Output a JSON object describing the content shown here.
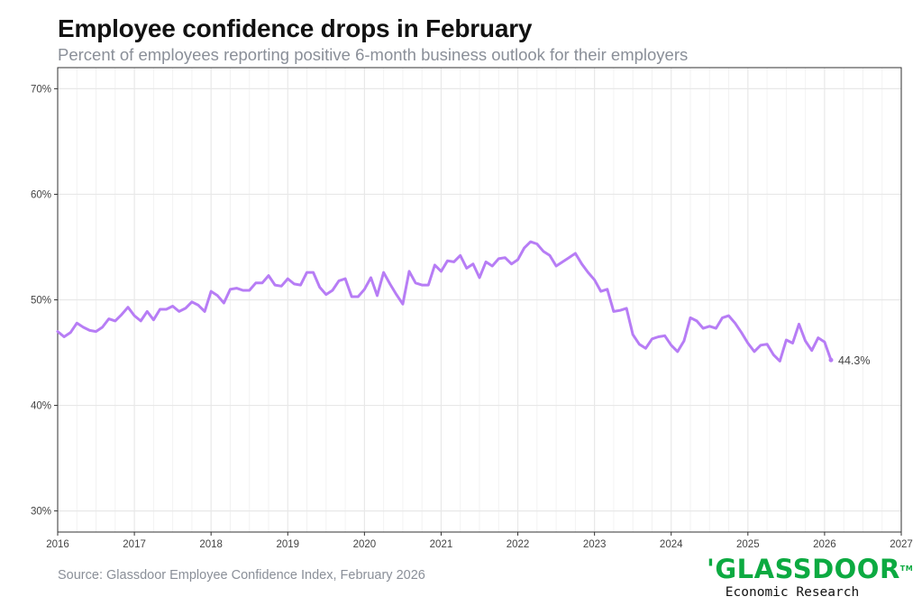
{
  "header": {
    "title": "Employee confidence drops in February",
    "subtitle": "Percent of employees reporting positive 6-month business outlook for their employers"
  },
  "footer": {
    "source": "Source: Glassdoor Employee Confidence Index, February 2026",
    "logo_text": "'GLASSDOOR",
    "logo_tm": "TM",
    "logo_subtext": "Economic Research"
  },
  "colors": {
    "line": "#b77df5",
    "grid": "#e8e8e8",
    "axis": "#333333"
  },
  "chart_data": {
    "type": "line",
    "title": "Employee confidence drops in February",
    "xlabel": "",
    "ylabel": "",
    "xlim": [
      2016,
      2027
    ],
    "ylim": [
      28,
      72
    ],
    "yticks": [
      30,
      40,
      50,
      60,
      70
    ],
    "ytick_labels": [
      "30%",
      "40%",
      "50%",
      "60%",
      "70%"
    ],
    "xticks": [
      2016,
      2017,
      2018,
      2019,
      2020,
      2021,
      2022,
      2023,
      2024,
      2025,
      2026,
      2027
    ],
    "xtick_labels": [
      "2016",
      "2017",
      "2018",
      "2019",
      "2020",
      "2021",
      "2022",
      "2023",
      "2024",
      "2025",
      "2026",
      "2027"
    ],
    "end_label": "44.3%",
    "series": [
      {
        "name": "Employee confidence",
        "start": "2016-01",
        "frequency": "monthly",
        "values": [
          47.0,
          46.5,
          46.9,
          47.8,
          47.4,
          47.1,
          47.0,
          47.4,
          48.2,
          48.0,
          48.6,
          49.3,
          48.5,
          48.0,
          48.9,
          48.1,
          49.1,
          49.1,
          49.4,
          48.9,
          49.2,
          49.8,
          49.5,
          48.9,
          50.8,
          50.4,
          49.7,
          51.0,
          51.1,
          50.9,
          50.9,
          51.6,
          51.6,
          52.3,
          51.4,
          51.3,
          52.0,
          51.5,
          51.4,
          52.6,
          52.6,
          51.2,
          50.5,
          50.9,
          51.8,
          52.0,
          50.3,
          50.3,
          51.0,
          52.1,
          50.4,
          52.6,
          51.5,
          50.5,
          49.6,
          52.7,
          51.6,
          51.4,
          51.4,
          53.3,
          52.7,
          53.7,
          53.6,
          54.2,
          53.0,
          53.4,
          52.1,
          53.6,
          53.2,
          53.9,
          54.0,
          53.4,
          53.8,
          54.9,
          55.5,
          55.3,
          54.6,
          54.2,
          53.2,
          53.6,
          54.0,
          54.4,
          53.4,
          52.6,
          51.9,
          50.8,
          51.0,
          48.9,
          49.0,
          49.2,
          46.7,
          45.8,
          45.4,
          46.3,
          46.5,
          46.6,
          45.7,
          45.1,
          46.1,
          48.3,
          48.0,
          47.3,
          47.5,
          47.3,
          48.3,
          48.5,
          47.8,
          46.9,
          45.9,
          45.1,
          45.7,
          45.8,
          44.8,
          44.2,
          46.2,
          45.9,
          47.7,
          46.1,
          45.2,
          46.4,
          46.0,
          44.3
        ]
      }
    ]
  }
}
